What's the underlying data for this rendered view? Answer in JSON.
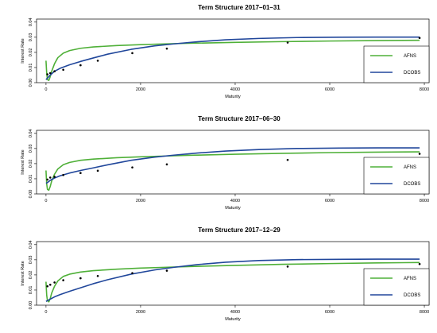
{
  "chart_data": [
    {
      "type": "line",
      "title": "Term Structure 2017–01–31",
      "xlabel": "Maturity",
      "ylabel": "Interest Rate",
      "xlim": [
        -200,
        8100
      ],
      "ylim": [
        0,
        0.042
      ],
      "xticks": [
        "0",
        "2000",
        "4000",
        "6000",
        "8000"
      ],
      "yticks": [
        "0.00",
        "0.01",
        "0.02",
        "0.03",
        "0.04"
      ],
      "legend": {
        "position": "bottom-right"
      },
      "series": [
        {
          "name": "AFNS",
          "color": "#4fb038",
          "x": [
            0,
            5,
            15,
            30,
            60,
            90,
            120,
            180,
            250,
            365,
            500,
            730,
            1000,
            1500,
            2000,
            2500,
            3000,
            4000,
            5000,
            6000,
            7000,
            7900
          ],
          "y": [
            0.0145,
            0.0115,
            0.006,
            0.002,
            0.0015,
            0.004,
            0.0075,
            0.0125,
            0.0165,
            0.0195,
            0.0212,
            0.0227,
            0.0236,
            0.0245,
            0.0251,
            0.0256,
            0.026,
            0.0266,
            0.0271,
            0.0275,
            0.0278,
            0.028
          ]
        },
        {
          "name": "DCOBS",
          "color": "#21479b",
          "x": [
            0,
            30,
            90,
            180,
            300,
            500,
            730,
            1000,
            1300,
            1800,
            2300,
            2700,
            3200,
            3800,
            4500,
            5300,
            6200,
            7000,
            7900
          ],
          "y": [
            0.002,
            0.003,
            0.005,
            0.0075,
            0.0095,
            0.0118,
            0.014,
            0.0163,
            0.0188,
            0.022,
            0.0243,
            0.0256,
            0.027,
            0.0283,
            0.0292,
            0.0298,
            0.03,
            0.0301,
            0.0301
          ]
        }
      ],
      "observed": {
        "x": [
          30,
          90,
          180,
          365,
          730,
          1095,
          1825,
          2555,
          5110,
          7900
        ],
        "y": [
          0.0055,
          0.0063,
          0.0075,
          0.0085,
          0.0115,
          0.0145,
          0.0195,
          0.0225,
          0.0265,
          0.0295
        ]
      }
    },
    {
      "type": "line",
      "title": "Term Structure 2017–06–30",
      "xlabel": "Maturity",
      "ylabel": "Interest Rate",
      "xlim": [
        -200,
        8100
      ],
      "ylim": [
        0,
        0.042
      ],
      "xticks": [
        "0",
        "2000",
        "4000",
        "6000",
        "8000"
      ],
      "yticks": [
        "0.00",
        "0.01",
        "0.02",
        "0.03",
        "0.04"
      ],
      "legend": {
        "position": "bottom-right"
      },
      "series": [
        {
          "name": "AFNS",
          "color": "#4fb038",
          "x": [
            0,
            5,
            15,
            30,
            60,
            90,
            120,
            180,
            250,
            365,
            500,
            730,
            1000,
            1500,
            2000,
            2500,
            3000,
            4000,
            5000,
            6000,
            7000,
            7900
          ],
          "y": [
            0.0155,
            0.012,
            0.0065,
            0.003,
            0.0025,
            0.005,
            0.0085,
            0.013,
            0.0165,
            0.0193,
            0.0208,
            0.0222,
            0.023,
            0.0239,
            0.0245,
            0.025,
            0.0255,
            0.0262,
            0.0268,
            0.0273,
            0.0276,
            0.0278
          ]
        },
        {
          "name": "DCOBS",
          "color": "#21479b",
          "x": [
            0,
            30,
            90,
            180,
            300,
            500,
            730,
            1000,
            1300,
            1800,
            2300,
            2700,
            3200,
            3800,
            4500,
            5300,
            6200,
            7000,
            7900
          ],
          "y": [
            0.007,
            0.0075,
            0.009,
            0.0105,
            0.012,
            0.0138,
            0.0155,
            0.0172,
            0.0192,
            0.0222,
            0.0243,
            0.0256,
            0.027,
            0.0283,
            0.0293,
            0.03,
            0.0303,
            0.0304,
            0.0304
          ]
        }
      ],
      "observed": {
        "x": [
          30,
          90,
          180,
          365,
          730,
          1095,
          1825,
          2555,
          5110,
          7900
        ],
        "y": [
          0.0095,
          0.0108,
          0.0113,
          0.0125,
          0.0138,
          0.0153,
          0.0175,
          0.0195,
          0.0225,
          0.0265
        ]
      }
    },
    {
      "type": "line",
      "title": "Term Structure 2017–12–29",
      "xlabel": "Maturity",
      "ylabel": "Interest Rate",
      "xlim": [
        -200,
        8100
      ],
      "ylim": [
        0,
        0.042
      ],
      "xticks": [
        "0",
        "2000",
        "4000",
        "6000",
        "8000"
      ],
      "yticks": [
        "0.00",
        "0.01",
        "0.02",
        "0.03",
        "0.04"
      ],
      "legend": {
        "position": "bottom-right"
      },
      "series": [
        {
          "name": "AFNS",
          "color": "#4fb038",
          "x": [
            0,
            5,
            15,
            30,
            60,
            90,
            120,
            180,
            250,
            365,
            500,
            730,
            1000,
            1500,
            2000,
            2500,
            3000,
            4000,
            5000,
            6000,
            7000,
            7900
          ],
          "y": [
            0.0155,
            0.012,
            0.0065,
            0.003,
            0.0022,
            0.0045,
            0.008,
            0.0125,
            0.016,
            0.019,
            0.0205,
            0.0219,
            0.0228,
            0.0238,
            0.0245,
            0.025,
            0.0255,
            0.0263,
            0.027,
            0.0275,
            0.0279,
            0.0282
          ]
        },
        {
          "name": "DCOBS",
          "color": "#21479b",
          "x": [
            0,
            30,
            90,
            180,
            300,
            500,
            730,
            1000,
            1300,
            1800,
            2300,
            2700,
            3200,
            3800,
            4500,
            5300,
            6200,
            7000,
            7900
          ],
          "y": [
            0.0025,
            0.003,
            0.004,
            0.0055,
            0.007,
            0.0092,
            0.0115,
            0.0142,
            0.0168,
            0.0205,
            0.0233,
            0.025,
            0.0268,
            0.0284,
            0.0295,
            0.0301,
            0.0303,
            0.0304,
            0.0304
          ]
        }
      ],
      "observed": {
        "x": [
          30,
          90,
          180,
          365,
          730,
          1095,
          1825,
          2555,
          5110,
          7900
        ],
        "y": [
          0.0125,
          0.0135,
          0.015,
          0.0165,
          0.0178,
          0.0193,
          0.0212,
          0.0228,
          0.0255,
          0.0272
        ]
      }
    }
  ]
}
